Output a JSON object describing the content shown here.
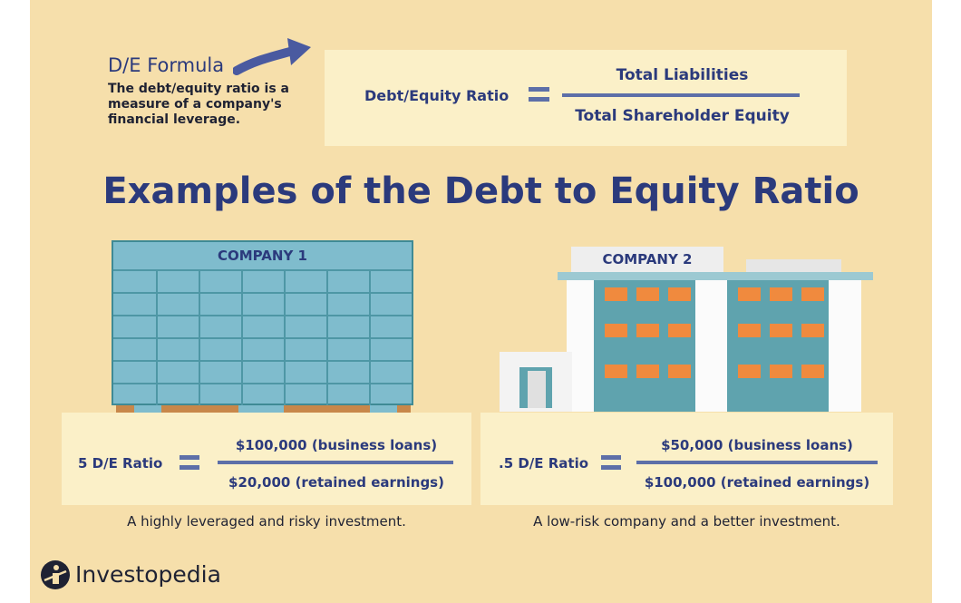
{
  "formula": {
    "title": "D/E Formula",
    "description": "The debt/equity ratio is a measure of a company's financial leverage.",
    "ratio_label": "Debt/Equity Ratio",
    "numerator": "Total Liabilities",
    "denominator": "Total Shareholder Equity"
  },
  "main_title": "Examples of the Debt to Equity Ratio",
  "company1": {
    "label": "COMPANY 1",
    "ratio_label": "5 D/E Ratio",
    "numerator": "$100,000 (business loans)",
    "denominator": "$20,000 (retained earnings)",
    "caption": "A highly leveraged and risky investment."
  },
  "company2": {
    "label": "COMPANY 2",
    "ratio_label": ".5 D/E Ratio",
    "numerator": "$50,000 (business loans)",
    "denominator": "$100,000 (retained earnings)",
    "caption": "A low-risk company and a better investment."
  },
  "brand": {
    "name": "Investopedia",
    "logo_icon": "investopedia-logo-icon"
  },
  "colors": {
    "background": "#f6dfab",
    "panel": "#fbf0c8",
    "navy": "#2b3a7c",
    "glass": "#7fbccd",
    "window_orange": "#f08a3e"
  }
}
